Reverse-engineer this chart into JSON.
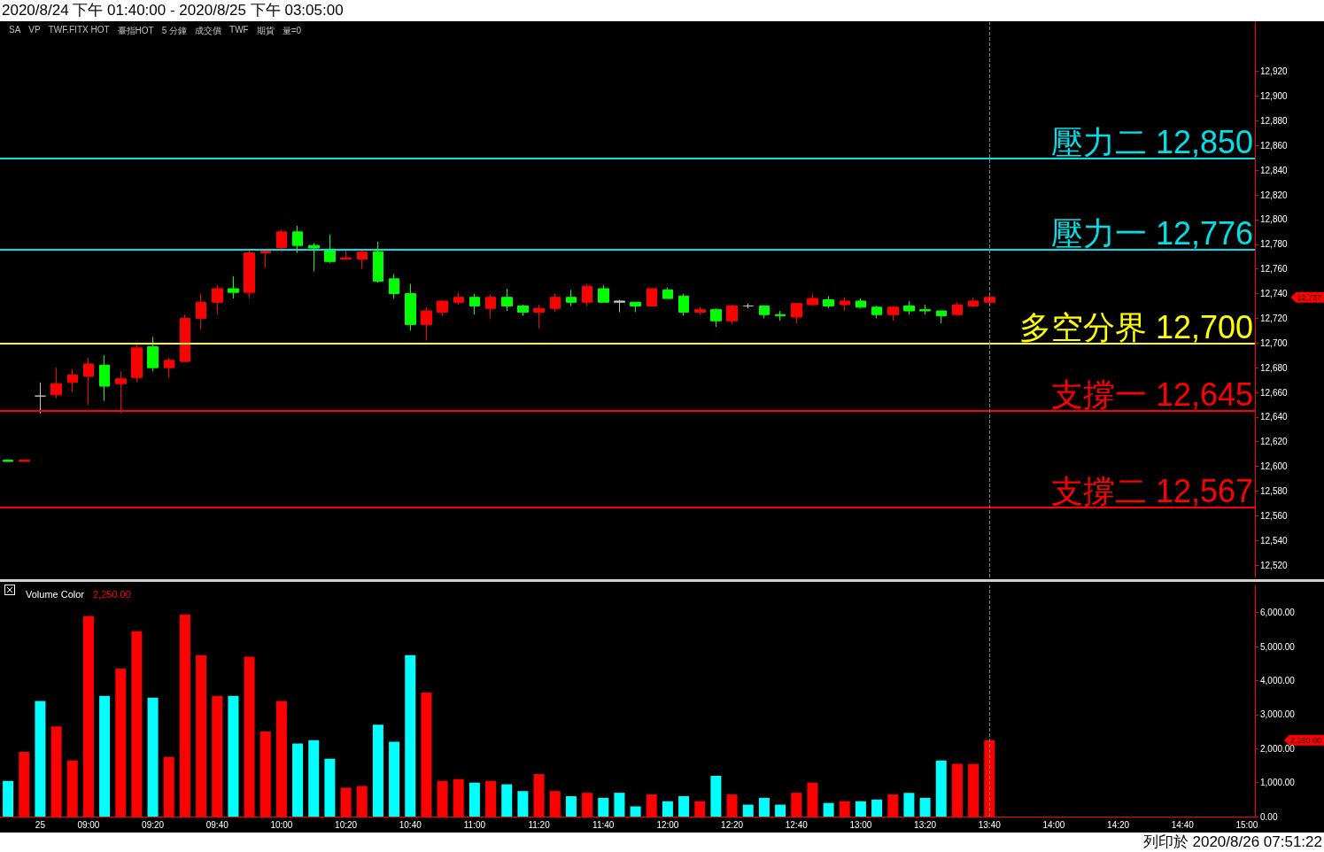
{
  "chart_data": [
    {
      "type": "candlestick",
      "title": "2020/8/24 下午 01:40:00 - 2020/8/25 下午 03:05:00",
      "categories": [
        null,
        null,
        "25",
        null,
        null,
        "09:00",
        null,
        null,
        null,
        "09:20",
        null,
        null,
        null,
        "09:40",
        null,
        null,
        null,
        "10:00",
        null,
        null,
        null,
        "10:20",
        null,
        null,
        null,
        "10:40",
        null,
        null,
        null,
        "11:00",
        null,
        null,
        null,
        "11:20",
        null,
        null,
        null,
        "11:40",
        null,
        null,
        null,
        "12:00",
        null,
        null,
        null,
        "12:20",
        null,
        null,
        null,
        "12:40",
        null,
        null,
        null,
        "13:00",
        null,
        null,
        null,
        "13:20",
        null,
        null,
        null,
        "13:40",
        null,
        null,
        null,
        "14:00",
        null,
        null,
        null,
        "14:20",
        null,
        null,
        null,
        "14:40",
        null,
        null,
        null,
        "15:00"
      ],
      "ohlc": [
        [
          12605,
          12605,
          12604,
          12604
        ],
        [
          12604,
          12605,
          12604,
          12605
        ],
        [
          12657,
          12668,
          12643,
          12657
        ],
        [
          12658,
          12680,
          12655,
          12667
        ],
        [
          12668,
          12679,
          12660,
          12674
        ],
        [
          12673,
          12688,
          12650,
          12683
        ],
        [
          12682,
          12690,
          12653,
          12665
        ],
        [
          12667,
          12677,
          12643,
          12671
        ],
        [
          12672,
          12699,
          12668,
          12696
        ],
        [
          12697,
          12705,
          12677,
          12680
        ],
        [
          12680,
          12688,
          12672,
          12686
        ],
        [
          12685,
          12723,
          12685,
          12720
        ],
        [
          12720,
          12740,
          12711,
          12733
        ],
        [
          12733,
          12747,
          12723,
          12744
        ],
        [
          12744,
          12754,
          12736,
          12741
        ],
        [
          12741,
          12775,
          12736,
          12773
        ],
        [
          12773,
          12776,
          12761,
          12775
        ],
        [
          12777,
          12792,
          12774,
          12790
        ],
        [
          12790,
          12795,
          12773,
          12779
        ],
        [
          12779,
          12781,
          12758,
          12777
        ],
        [
          12776,
          12788,
          12765,
          12766
        ],
        [
          12768,
          12775,
          12768,
          12769
        ],
        [
          12768,
          12776,
          12760,
          12774
        ],
        [
          12774,
          12782,
          12749,
          12750
        ],
        [
          12752,
          12756,
          12736,
          12740
        ],
        [
          12740,
          12748,
          12710,
          12715
        ],
        [
          12715,
          12729,
          12702,
          12726
        ],
        [
          12725,
          12734,
          12722,
          12734
        ],
        [
          12733,
          12741,
          12731,
          12737
        ],
        [
          12737,
          12740,
          12723,
          12730
        ],
        [
          12728,
          12739,
          12720,
          12737
        ],
        [
          12737,
          12744,
          12726,
          12730
        ],
        [
          12730,
          12731,
          12722,
          12725
        ],
        [
          12725,
          12731,
          12712,
          12728
        ],
        [
          12728,
          12740,
          12725,
          12737
        ],
        [
          12737,
          12743,
          12730,
          12733
        ],
        [
          12733,
          12748,
          12730,
          12746
        ],
        [
          12744,
          12747,
          12733,
          12733
        ],
        [
          12734,
          12735,
          12725,
          12733
        ],
        [
          12733,
          12733,
          12725,
          12730
        ],
        [
          12730,
          12744,
          12730,
          12744
        ],
        [
          12743,
          12745,
          12736,
          12736
        ],
        [
          12738,
          12740,
          12722,
          12725
        ],
        [
          12725,
          12729,
          12723,
          12727
        ],
        [
          12727,
          12728,
          12713,
          12718
        ],
        [
          12718,
          12731,
          12715,
          12730
        ],
        [
          12730,
          12732,
          12728,
          12730
        ],
        [
          12730,
          12730,
          12720,
          12723
        ],
        [
          12723,
          12726,
          12718,
          12722
        ],
        [
          12721,
          12732,
          12716,
          12732
        ],
        [
          12731,
          12740,
          12730,
          12736
        ],
        [
          12735,
          12738,
          12728,
          12730
        ],
        [
          12731,
          12737,
          12726,
          12734
        ],
        [
          12734,
          12736,
          12728,
          12729
        ],
        [
          12729,
          12730,
          12720,
          12723
        ],
        [
          12723,
          12730,
          12718,
          12729
        ],
        [
          12730,
          12734,
          12723,
          12726
        ],
        [
          12727,
          12731,
          12723,
          12726
        ],
        [
          12726,
          12726,
          12716,
          12722
        ],
        [
          12723,
          12733,
          12722,
          12731
        ],
        [
          12730,
          12737,
          12729,
          12734
        ],
        [
          12733,
          12739,
          12732,
          12737
        ],
        null,
        null,
        null,
        null,
        null,
        null,
        null,
        null,
        null,
        null,
        null,
        null,
        null,
        null,
        null,
        null
      ],
      "colors": [
        "#00ff00",
        "#ff0000",
        "#c0c0c0",
        "#ff0000",
        "#ff0000",
        "#ff0000",
        "#00ff00",
        "#ff0000",
        "#ff0000",
        "#00ff00",
        "#ff0000",
        "#ff0000",
        "#ff0000",
        "#ff0000",
        "#00ff00",
        "#ff0000",
        "#ff0000",
        "#ff0000",
        "#00ff00",
        "#00ff00",
        "#00ff00",
        "#ff0000",
        "#ff0000",
        "#00ff00",
        "#00ff00",
        "#00ff00",
        "#ff0000",
        "#ff0000",
        "#ff0000",
        "#00ff00",
        "#ff0000",
        "#00ff00",
        "#00ff00",
        "#ff0000",
        "#ff0000",
        "#00ff00",
        "#ff0000",
        "#00ff00",
        "#c0c0c0",
        "#00ff00",
        "#ff0000",
        "#00ff00",
        "#00ff00",
        "#ff0000",
        "#00ff00",
        "#ff0000",
        "#c0c0c0",
        "#00ff00",
        "#00ff00",
        "#ff0000",
        "#ff0000",
        "#00ff00",
        "#ff0000",
        "#00ff00",
        "#00ff00",
        "#ff0000",
        "#00ff00",
        "#00ff00",
        "#00ff00",
        "#ff0000",
        "#ff0000",
        "#ff0000",
        null,
        null,
        null,
        null,
        null,
        null,
        null,
        null,
        null,
        null,
        null,
        null,
        null,
        null,
        null,
        null
      ],
      "ylim": [
        12510,
        12960
      ],
      "yticks": [
        {
          "value": 12520,
          "label": "12,520"
        },
        {
          "value": 12540,
          "label": "12,540"
        },
        {
          "value": 12560,
          "label": "12,560"
        },
        {
          "value": 12580,
          "label": "12,580"
        },
        {
          "value": 12600,
          "label": "12,600"
        },
        {
          "value": 12620,
          "label": "12,620"
        },
        {
          "value": 12640,
          "label": "12,640"
        },
        {
          "value": 12660,
          "label": "12,660"
        },
        {
          "value": 12680,
          "label": "12,680"
        },
        {
          "value": 12700,
          "label": "12,700"
        },
        {
          "value": 12720,
          "label": "12,720"
        },
        {
          "value": 12740,
          "label": "12,740"
        },
        {
          "value": 12760,
          "label": "12,760"
        },
        {
          "value": 12780,
          "label": "12,780"
        },
        {
          "value": 12800,
          "label": "12,800"
        },
        {
          "value": 12820,
          "label": "12,820"
        },
        {
          "value": 12840,
          "label": "12,840"
        },
        {
          "value": 12860,
          "label": "12,860"
        },
        {
          "value": 12880,
          "label": "12,880"
        },
        {
          "value": 12900,
          "label": "12,900"
        },
        {
          "value": 12920,
          "label": "12,920"
        }
      ],
      "tick_labels": "y",
      "ref_lines": [
        {
          "axis": "y",
          "value": 12850,
          "label": "壓力二 12,850",
          "color": "#00e0e8"
        },
        {
          "axis": "y",
          "value": 12776,
          "label": "壓力一 12,776",
          "color": "#00e0e8"
        },
        {
          "axis": "y",
          "value": 12700,
          "label": "多空分界 12,700",
          "color": "#ffff00"
        },
        {
          "axis": "y",
          "value": 12645,
          "label": "支撐一 12,645",
          "color": "#ff0000"
        },
        {
          "axis": "y",
          "value": 12567,
          "label": "支撐二 12,567",
          "color": "#ff0000"
        },
        {
          "axis": "x",
          "value": "13:40",
          "color": "#808080",
          "line_style": "dashed"
        }
      ],
      "annotations": [
        "SA",
        "VP",
        "TWF.FITX HOT",
        "臺指HOT",
        "5 分鐘",
        "成交價",
        "TWF",
        "期貨",
        "量=0",
        "12,737"
      ]
    },
    {
      "type": "bar",
      "title": "Volume Color",
      "subtitle": "2,250.00",
      "categories": [
        null,
        null,
        "25",
        null,
        null,
        "09:00",
        null,
        null,
        null,
        "09:20",
        null,
        null,
        null,
        "09:40",
        null,
        null,
        null,
        "10:00",
        null,
        null,
        null,
        "10:20",
        null,
        null,
        null,
        "10:40",
        null,
        null,
        null,
        "11:00",
        null,
        null,
        null,
        "11:20",
        null,
        null,
        null,
        "11:40",
        null,
        null,
        null,
        "12:00",
        null,
        null,
        null,
        "12:20",
        null,
        null,
        null,
        "12:40",
        null,
        null,
        null,
        "13:00",
        null,
        null,
        null,
        "13:20",
        null,
        null,
        null,
        "13:40",
        null,
        null,
        null,
        "14:00",
        null,
        null,
        null,
        "14:20",
        null,
        null,
        null,
        "14:40",
        null,
        null,
        null,
        "15:00"
      ],
      "values": [
        1050,
        1900,
        3400,
        2650,
        1650,
        5900,
        3550,
        4350,
        5450,
        3500,
        1750,
        5950,
        4750,
        3550,
        3550,
        4700,
        2500,
        3400,
        2150,
        2250,
        1700,
        850,
        900,
        2700,
        2200,
        4750,
        3650,
        1050,
        1100,
        1000,
        1050,
        950,
        750,
        1250,
        750,
        600,
        700,
        550,
        700,
        300,
        650,
        450,
        600,
        450,
        1200,
        650,
        350,
        550,
        350,
        700,
        1000,
        400,
        450,
        450,
        500,
        650,
        700,
        550,
        1650,
        1550,
        1550,
        2250,
        null,
        null,
        null,
        null,
        null,
        null,
        null,
        null,
        null,
        null,
        null,
        null,
        null,
        null,
        null,
        null
      ],
      "colors": [
        "#00ffff",
        "#ff0000",
        "#00ffff",
        "#ff0000",
        "#ff0000",
        "#ff0000",
        "#00ffff",
        "#ff0000",
        "#ff0000",
        "#00ffff",
        "#ff0000",
        "#ff0000",
        "#ff0000",
        "#ff0000",
        "#00ffff",
        "#ff0000",
        "#ff0000",
        "#ff0000",
        "#00ffff",
        "#00ffff",
        "#00ffff",
        "#ff0000",
        "#ff0000",
        "#00ffff",
        "#00ffff",
        "#00ffff",
        "#ff0000",
        "#ff0000",
        "#ff0000",
        "#00ffff",
        "#ff0000",
        "#00ffff",
        "#00ffff",
        "#ff0000",
        "#ff0000",
        "#00ffff",
        "#ff0000",
        "#00ffff",
        "#00ffff",
        "#00ffff",
        "#ff0000",
        "#00ffff",
        "#00ffff",
        "#ff0000",
        "#00ffff",
        "#ff0000",
        "#00ffff",
        "#00ffff",
        "#00ffff",
        "#ff0000",
        "#ff0000",
        "#00ffff",
        "#ff0000",
        "#00ffff",
        "#00ffff",
        "#ff0000",
        "#00ffff",
        "#00ffff",
        "#00ffff",
        "#ff0000",
        "#ff0000",
        "#ff0000",
        null,
        null,
        null,
        null,
        null,
        null,
        null,
        null,
        null,
        null,
        null,
        null,
        null,
        null,
        null,
        null
      ],
      "ylim": [
        0,
        6800
      ],
      "yticks": [
        {
          "value": 0,
          "label": "0.00"
        },
        {
          "value": 1000,
          "label": "1,000.00"
        },
        {
          "value": 2000,
          "label": "2,000.00"
        },
        {
          "value": 3000,
          "label": "3,000.00"
        },
        {
          "value": 4000,
          "label": "4,000.00"
        },
        {
          "value": 5000,
          "label": "5,000.00"
        },
        {
          "value": 6000,
          "label": "6,000.00"
        }
      ],
      "ref_lines": [
        {
          "axis": "x",
          "value": "13:40",
          "color": "#808080",
          "line_style": "dashed"
        }
      ],
      "annotations": [
        "2,250.00",
        "列印於 2020/8/26 07:51:22"
      ]
    }
  ]
}
